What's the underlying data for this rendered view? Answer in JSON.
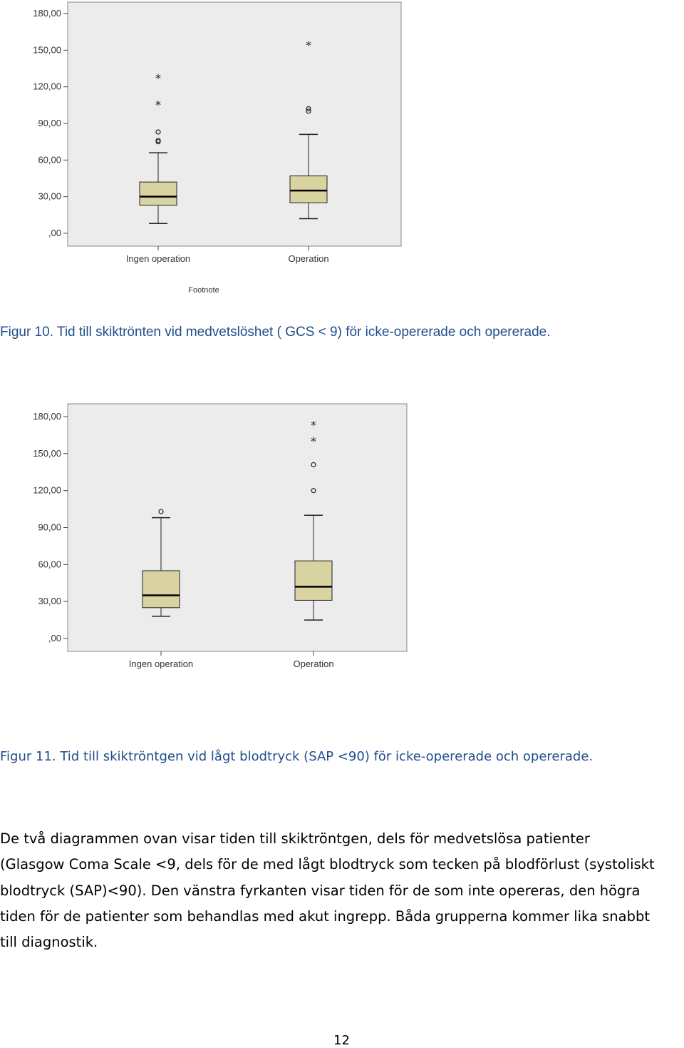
{
  "charts": [
    {
      "footnote": "Footnote",
      "caption": "Figur 10. Tid till skiktrönten vid medvetslöshet ( GCS < 9) för icke-opererade och opererade."
    },
    {
      "footnote": "",
      "caption": "Figur 11. Tid till skiktröntgen vid lågt blodtryck (SAP <90) för icke-opererade och opererade."
    }
  ],
  "chart_data": [
    {
      "type": "boxplot",
      "categories": [
        "Ingen operation",
        "Operation"
      ],
      "yticks": [
        ",00",
        "30,00",
        "60,00",
        "90,00",
        "120,00",
        "150,00",
        "180,00"
      ],
      "ylim": [
        0,
        185
      ],
      "grid": false,
      "boxes": [
        {
          "name": "Ingen operation",
          "min": 8,
          "q1": 23,
          "median": 30,
          "q3": 42,
          "max": 66,
          "outliers": [
            75,
            76,
            83
          ],
          "extremes": [
            106,
            128
          ]
        },
        {
          "name": "Operation",
          "min": 12,
          "q1": 25,
          "median": 35,
          "q3": 47,
          "max": 81,
          "outliers": [
            100,
            102
          ],
          "extremes": [
            155
          ]
        }
      ]
    },
    {
      "type": "boxplot",
      "categories": [
        "Ingen operation",
        "Operation"
      ],
      "yticks": [
        ",00",
        "30,00",
        "60,00",
        "90,00",
        "120,00",
        "150,00",
        "180,00"
      ],
      "ylim": [
        0,
        185
      ],
      "grid": false,
      "boxes": [
        {
          "name": "Ingen operation",
          "min": 18,
          "q1": 25,
          "median": 35,
          "q3": 55,
          "max": 98,
          "outliers": [
            103
          ],
          "extremes": []
        },
        {
          "name": "Operation",
          "min": 15,
          "q1": 31,
          "median": 42,
          "q3": 63,
          "max": 100,
          "outliers": [
            120,
            141
          ],
          "extremes": [
            161,
            174
          ]
        }
      ]
    }
  ],
  "body": {
    "lines": [
      "De två diagrammen ovan visar tiden till skiktröntgen, dels för medvetslösa patienter",
      "(Glasgow Coma Scale <9, dels för de med lågt blodtryck som tecken på blodförlust (systoliskt",
      "blodtryck (SAP)<90). Den vänstra fyrkanten visar tiden för de som inte opereras, den högra",
      "tiden för de patienter som behandlas med akut ingrepp. Båda grupperna kommer lika snabbt",
      "till diagnostik."
    ]
  },
  "page_number": "12",
  "colors": {
    "plot_background": "#ececec",
    "box_fill": "#d8d3a1",
    "caption_text": "#1f4e8c"
  }
}
